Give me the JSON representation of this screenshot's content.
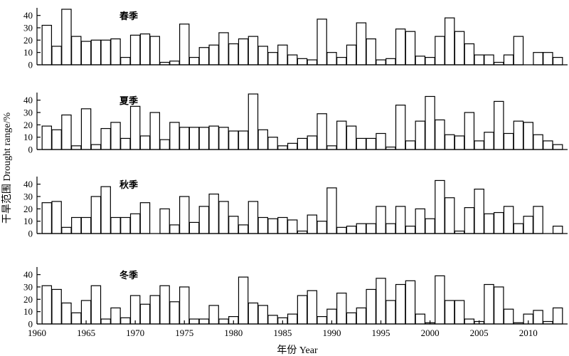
{
  "chart_data": {
    "type": "bar",
    "xlabel": "年份 Year",
    "ylabel": "干旱范围 Drought range/%",
    "x": [
      1961,
      1962,
      1963,
      1964,
      1965,
      1966,
      1967,
      1968,
      1969,
      1970,
      1971,
      1972,
      1973,
      1974,
      1975,
      1976,
      1977,
      1978,
      1979,
      1980,
      1981,
      1982,
      1983,
      1984,
      1985,
      1986,
      1987,
      1988,
      1989,
      1990,
      1991,
      1992,
      1993,
      1994,
      1995,
      1996,
      1997,
      1998,
      1999,
      2000,
      2001,
      2002,
      2003,
      2004,
      2005,
      2006,
      2007,
      2008,
      2009,
      2010,
      2011,
      2012,
      2013
    ],
    "xticks": [
      1960,
      1965,
      1970,
      1975,
      1980,
      1985,
      1990,
      1995,
      2000,
      2005,
      2010
    ],
    "xlim": [
      1960,
      2014
    ],
    "ylim": [
      0,
      45
    ],
    "yticks": [
      0,
      10,
      20,
      30,
      40
    ],
    "panels": [
      {
        "title": "春季",
        "values": [
          32,
          15,
          45,
          23,
          19,
          20,
          20,
          21,
          6,
          24,
          25,
          23,
          2,
          3,
          33,
          6,
          14,
          16,
          26,
          17,
          21,
          23,
          15,
          10,
          16,
          8,
          5,
          4,
          37,
          10,
          6,
          16,
          34,
          21,
          4,
          5,
          29,
          27,
          7,
          6,
          23,
          38,
          27,
          17,
          8,
          8,
          2,
          8,
          23,
          0,
          10,
          10,
          6
        ]
      },
      {
        "title": "夏季",
        "values": [
          19,
          16,
          28,
          3,
          33,
          4,
          17,
          22,
          9,
          35,
          11,
          30,
          8,
          22,
          18,
          18,
          18,
          19,
          18,
          15,
          15,
          45,
          16,
          10,
          3,
          5,
          9,
          11,
          29,
          3,
          23,
          19,
          9,
          9,
          13,
          2,
          36,
          7,
          23,
          43,
          24,
          12,
          11,
          30,
          7,
          14,
          39,
          13,
          23,
          22,
          12,
          7,
          4
        ]
      },
      {
        "title": "秋季",
        "values": [
          25,
          26,
          5,
          13,
          13,
          30,
          38,
          13,
          13,
          16,
          25,
          0,
          20,
          7,
          30,
          9,
          22,
          32,
          26,
          14,
          7,
          26,
          13,
          12,
          13,
          11,
          2,
          15,
          10,
          37,
          5,
          6,
          8,
          8,
          22,
          8,
          22,
          6,
          20,
          12,
          43,
          29,
          2,
          21,
          36,
          16,
          17,
          22,
          8,
          14,
          22,
          0,
          6
        ]
      },
      {
        "title": "冬季",
        "values": [
          31,
          28,
          17,
          9,
          19,
          31,
          4,
          13,
          5,
          23,
          16,
          23,
          31,
          18,
          30,
          4,
          4,
          15,
          4,
          6,
          38,
          17,
          15,
          7,
          5,
          8,
          23,
          27,
          6,
          12,
          25,
          9,
          13,
          28,
          37,
          19,
          32,
          35,
          8,
          1,
          39,
          19,
          19,
          4,
          2,
          32,
          30,
          12,
          1,
          8,
          11,
          2,
          13
        ]
      }
    ]
  }
}
